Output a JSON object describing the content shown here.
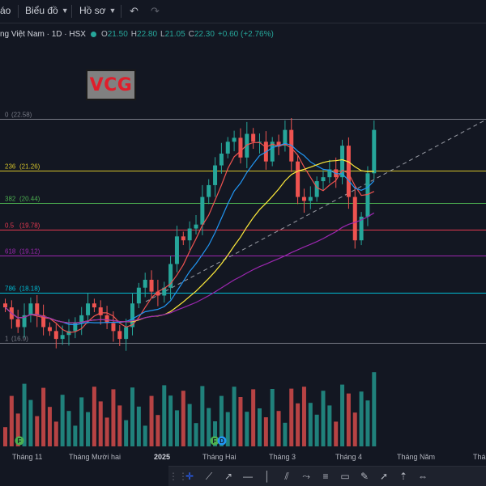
{
  "toolbar": {
    "left_partial_label": "áo",
    "chart_menu_label": "Biểu đồ",
    "profile_menu_label": "Hồ sơ",
    "undo_icon": "undo-icon",
    "redo_icon": "redo-icon"
  },
  "legend": {
    "symbol_text": "ng Việt Nam · 1D · HSX",
    "open_label": "O",
    "open_value": "21.50",
    "high_label": "H",
    "high_value": "22.80",
    "low_label": "L",
    "low_value": "21.05",
    "close_label": "C",
    "close_value": "22.30",
    "change_text": "+0.60 (+2.76%)",
    "up_color": "#26a69a",
    "down_color": "#ef5350"
  },
  "logo": {
    "text": "VCG",
    "text_color": "#e01e2b",
    "background": "#808080"
  },
  "fib_levels": [
    {
      "ratio": "0",
      "price_text": "(22.58)",
      "price": 22.58,
      "color": "#787b86"
    },
    {
      "ratio": "236",
      "price_text": "(21.26)",
      "price": 21.26,
      "color": "#d4c22a"
    },
    {
      "ratio": "382",
      "price_text": "(20.44)",
      "price": 20.44,
      "color": "#4caf50"
    },
    {
      "ratio": "0.5",
      "price_text": "(19.78)",
      "price": 19.78,
      "color": "#e53950"
    },
    {
      "ratio": "618",
      "price_text": "(19.12)",
      "price": 19.12,
      "color": "#9c27b0"
    },
    {
      "ratio": "786",
      "price_text": "(18.18)",
      "price": 18.18,
      "color": "#00bcd4"
    },
    {
      "ratio": "1",
      "price_text": "(16.9)",
      "price": 16.9,
      "color": "#787b86"
    }
  ],
  "time_axis": [
    "Tháng 11",
    "Tháng Mười hai",
    "2025",
    "Tháng Hai",
    "Tháng 3",
    "Tháng 4",
    "Tháng Năm",
    "Tháng"
  ],
  "markers": [
    {
      "label": "F",
      "color": "#4caf50"
    },
    {
      "label": "F",
      "color": "#4caf50"
    },
    {
      "label": "D",
      "color": "#2196f3"
    }
  ],
  "drawing_tools": [
    "drag-handle-icon",
    "crosshair-icon",
    "trend-line-icon",
    "ray-icon",
    "horizontal-ray-icon",
    "vertical-line-icon",
    "parallel-channel-icon",
    "path-icon",
    "fib-retracement-icon",
    "rectangle-icon",
    "brush-icon",
    "arrow-icon",
    "long-position-icon",
    "measure-icon"
  ],
  "chart_data": {
    "type": "candlestick",
    "timeframe": "1D",
    "price_range": [
      16.5,
      23.5
    ],
    "close_series": [
      17.8,
      17.5,
      17.3,
      17.6,
      17.9,
      17.6,
      17.3,
      17.2,
      17.0,
      17.1,
      17.2,
      17.4,
      17.6,
      17.9,
      17.8,
      17.6,
      17.4,
      17.2,
      17.0,
      17.3,
      17.9,
      18.3,
      18.5,
      18.2,
      18.1,
      18.3,
      18.9,
      19.6,
      19.5,
      19.8,
      19.9,
      20.6,
      20.9,
      21.4,
      21.7,
      22.0,
      22.1,
      21.6,
      22.2,
      22.0,
      22.0,
      21.5,
      22.0,
      21.9,
      22.3,
      21.5,
      20.6,
      20.5,
      20.6,
      21.0,
      21.1,
      21.3,
      21.1,
      21.9,
      20.6,
      19.5,
      20.1,
      21.2,
      22.3
    ],
    "close_series_note_free": true,
    "ma_series": [
      {
        "color": "#ef5350",
        "kind": "fast"
      },
      {
        "color": "#2196f3",
        "kind": "fast"
      },
      {
        "color": "#ffeb3b",
        "kind": "medium"
      },
      {
        "color": "#9c27b0",
        "kind": "slow"
      }
    ],
    "volume_colors": {
      "up": "#26a69a",
      "down": "#ef5350"
    }
  }
}
